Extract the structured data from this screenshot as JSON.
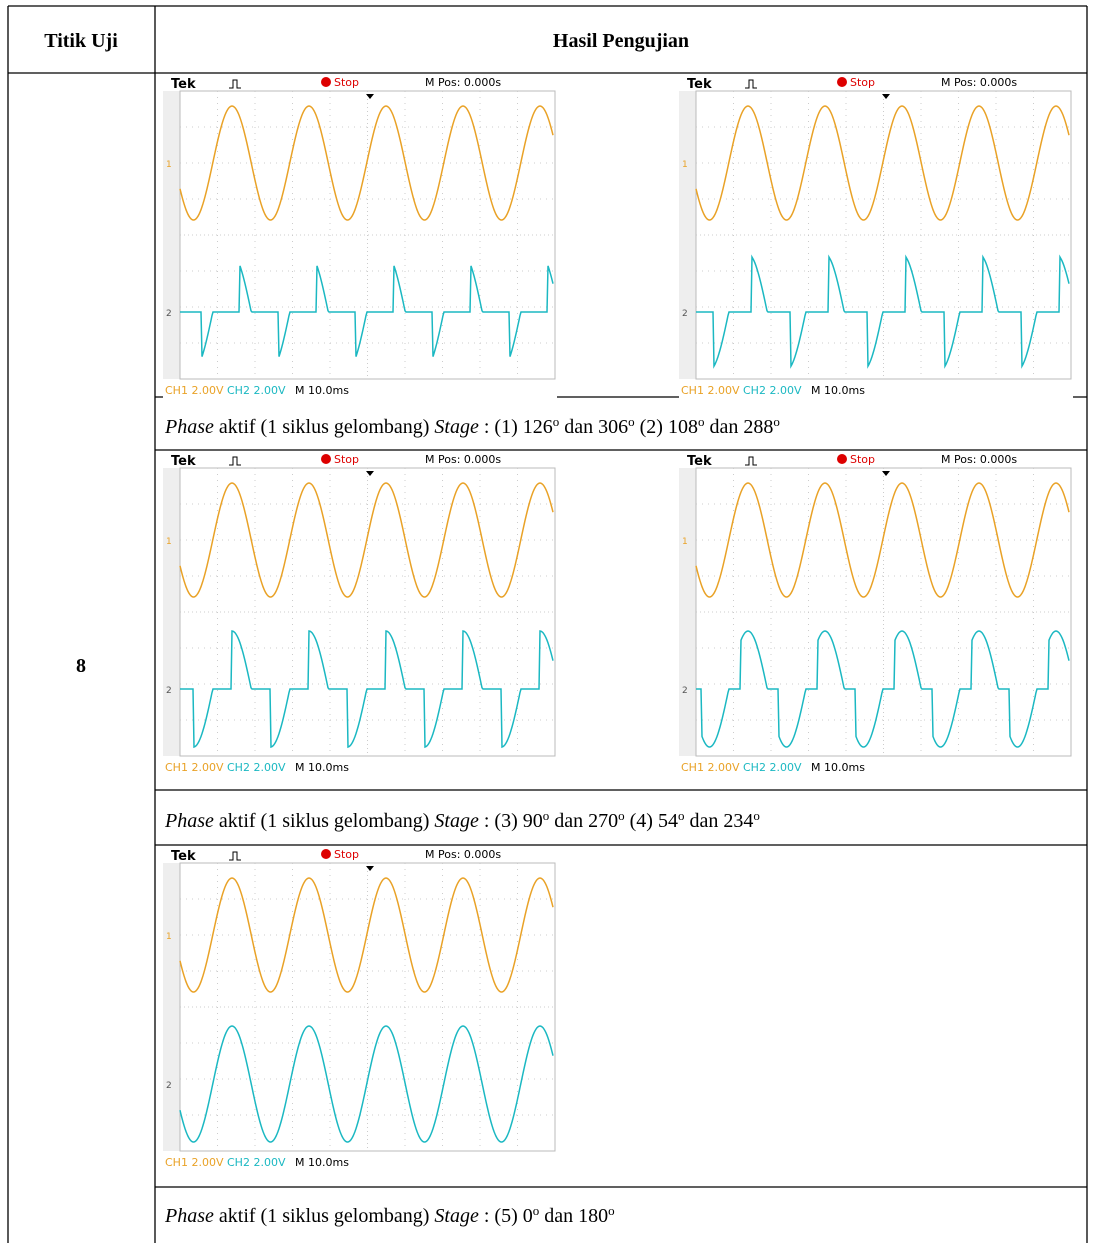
{
  "header": {
    "col1": "Titik Uji",
    "col2": "Hasil Pengujian"
  },
  "row": {
    "label": "8",
    "scopes": [
      {
        "brand": "Tek",
        "state": "Stop",
        "mpos": "M Pos: 0.000s",
        "ch1": "CH1 2.00V",
        "ch2": "CH2 2.00V",
        "timebase": "M 10.0ms",
        "marker1": "1",
        "marker2": "2"
      },
      {
        "brand": "Tek",
        "state": "Stop",
        "mpos": "M Pos: 0.000s",
        "ch1": "CH1 2.00V",
        "ch2": "CH2 2.00V",
        "timebase": "M 10.0ms",
        "marker1": "1",
        "marker2": "2"
      },
      {
        "brand": "Tek",
        "state": "Stop",
        "mpos": "M Pos: 0.000s",
        "ch1": "CH1 2.00V",
        "ch2": "CH2 2.00V",
        "timebase": "M 10.0ms",
        "marker1": "1",
        "marker2": "2"
      },
      {
        "brand": "Tek",
        "state": "Stop",
        "mpos": "M Pos: 0.000s",
        "ch1": "CH1 2.00V",
        "ch2": "CH2 2.00V",
        "timebase": "M 10.0ms",
        "marker1": "1",
        "marker2": "2"
      },
      {
        "brand": "Tek",
        "state": "Stop",
        "mpos": "M Pos: 0.000s",
        "ch1": "CH1 2.00V",
        "ch2": "CH2 2.00V",
        "timebase": "M 10.0ms",
        "marker1": "1",
        "marker2": "2"
      }
    ],
    "captions": [
      [
        {
          "text": "Phase",
          "style": "italic"
        },
        {
          "text": " aktif (1 siklus gelombang) ",
          "style": "normal"
        },
        {
          "text": "Stage",
          "style": "italic"
        },
        {
          "text": " : (1) 126",
          "style": "normal"
        },
        {
          "text": "o",
          "style": "sup"
        },
        {
          "text": " dan 306",
          "style": "normal"
        },
        {
          "text": "o",
          "style": "sup"
        },
        {
          "text": " (2) 108",
          "style": "normal"
        },
        {
          "text": "o",
          "style": "sup"
        },
        {
          "text": " dan 288",
          "style": "normal"
        },
        {
          "text": "o",
          "style": "sup"
        }
      ],
      [
        {
          "text": "Phase",
          "style": "italic"
        },
        {
          "text": " aktif (1 siklus gelombang) ",
          "style": "normal"
        },
        {
          "text": "Stage",
          "style": "italic"
        },
        {
          "text": " : (3) 90",
          "style": "normal"
        },
        {
          "text": "o",
          "style": "sup"
        },
        {
          "text": " dan 270",
          "style": "normal"
        },
        {
          "text": "o",
          "style": "sup"
        },
        {
          "text": " (4) 54",
          "style": "normal"
        },
        {
          "text": "o",
          "style": "sup"
        },
        {
          "text": " dan 234",
          "style": "normal"
        },
        {
          "text": "o",
          "style": "sup"
        }
      ],
      [
        {
          "text": "Phase",
          "style": "italic"
        },
        {
          "text": " aktif (1 siklus gelombang) ",
          "style": "normal"
        },
        {
          "text": "Stage",
          "style": "italic"
        },
        {
          "text": " : (5) 0",
          "style": "normal"
        },
        {
          "text": "o",
          "style": "sup"
        },
        {
          "text": " dan 180",
          "style": "normal"
        },
        {
          "text": "o",
          "style": "sup"
        }
      ]
    ]
  }
}
